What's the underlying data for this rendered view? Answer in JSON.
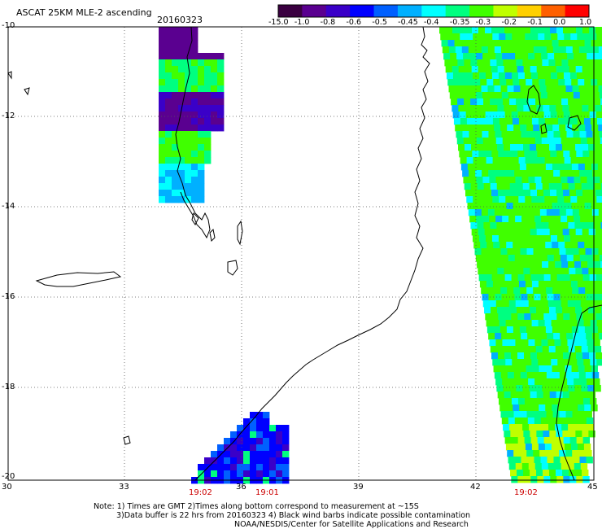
{
  "title": "ASCAT 25KM MLE-2 ascending",
  "date": "20160323",
  "colorbar": {
    "ticks": [
      "-15.0",
      "-1.0",
      "-0.8",
      "-0.6",
      "-0.5",
      "-0.45",
      "-0.4",
      "-0.35",
      "-0.3",
      "-0.2",
      "-0.1",
      "0.0",
      "1.0"
    ],
    "colors": [
      "#3a0040",
      "#5a0090",
      "#3a00c8",
      "#0000ff",
      "#0060ff",
      "#00b0ff",
      "#00ffff",
      "#00ff80",
      "#40ff00",
      "#c0ff00",
      "#ffd000",
      "#ff6000",
      "#ff0000"
    ]
  },
  "axes": {
    "lon_labels": [
      "30",
      "33",
      "36",
      "39",
      "42",
      "45"
    ],
    "lat_labels": [
      "-10",
      "-12",
      "-14",
      "-16",
      "-18",
      "-20"
    ]
  },
  "times": [
    "19:02",
    "19:01",
    "19:02"
  ],
  "notes": {
    "line1": "Note: 1) Times are GMT 2)Times along bottom correspond to measurement at ~15S",
    "line2": "3)Data buffer is 22 hrs from 20160323 4) Black wind barbs indicate possible contamination",
    "line3": "NOAA/NESDIS/Center for Satellite Applications and Research"
  }
}
